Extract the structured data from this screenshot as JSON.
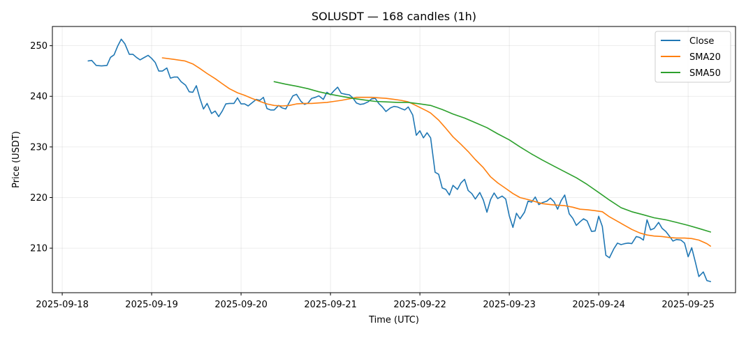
{
  "chart_data": {
    "type": "line",
    "title": "SOLUSDT — 168 candles (1h)",
    "xlabel": "Time (UTC)",
    "ylabel": "Price (USDT)",
    "x_ticks": [
      "2025-09-18",
      "2025-09-19",
      "2025-09-20",
      "2025-09-21",
      "2025-09-22",
      "2025-09-23",
      "2025-09-24",
      "2025-09-25"
    ],
    "x_range_days": [
      -0.11,
      7.53
    ],
    "y_ticks": [
      210,
      220,
      230,
      240,
      250
    ],
    "ylim": [
      201.2,
      253.8
    ],
    "grid": true,
    "legend_position": "top-right",
    "series": [
      {
        "name": "Close",
        "color": "#1f77b4",
        "points": [
          [
            0.29,
            247.0
          ],
          [
            0.33,
            247.1
          ],
          [
            0.38,
            246.1
          ],
          [
            0.44,
            246.0
          ],
          [
            0.5,
            246.1
          ],
          [
            0.54,
            247.7
          ],
          [
            0.58,
            248.2
          ],
          [
            0.62,
            249.9
          ],
          [
            0.66,
            251.3
          ],
          [
            0.7,
            250.4
          ],
          [
            0.75,
            248.3
          ],
          [
            0.79,
            248.3
          ],
          [
            0.83,
            247.7
          ],
          [
            0.87,
            247.2
          ],
          [
            0.91,
            247.6
          ],
          [
            0.96,
            248.1
          ],
          [
            1.0,
            247.5
          ],
          [
            1.04,
            246.7
          ],
          [
            1.08,
            245.0
          ],
          [
            1.12,
            245.0
          ],
          [
            1.17,
            245.6
          ],
          [
            1.21,
            243.6
          ],
          [
            1.25,
            243.8
          ],
          [
            1.29,
            243.8
          ],
          [
            1.33,
            242.9
          ],
          [
            1.38,
            242.2
          ],
          [
            1.42,
            240.9
          ],
          [
            1.46,
            240.8
          ],
          [
            1.5,
            242.1
          ],
          [
            1.54,
            239.6
          ],
          [
            1.58,
            237.5
          ],
          [
            1.62,
            238.6
          ],
          [
            1.67,
            236.6
          ],
          [
            1.71,
            237.1
          ],
          [
            1.75,
            236.0
          ],
          [
            1.79,
            237.1
          ],
          [
            1.83,
            238.5
          ],
          [
            1.87,
            238.6
          ],
          [
            1.92,
            238.6
          ],
          [
            1.96,
            239.7
          ],
          [
            2.0,
            238.5
          ],
          [
            2.04,
            238.5
          ],
          [
            2.08,
            238.1
          ],
          [
            2.12,
            238.7
          ],
          [
            2.17,
            239.4
          ],
          [
            2.21,
            239.2
          ],
          [
            2.25,
            239.8
          ],
          [
            2.29,
            237.6
          ],
          [
            2.33,
            237.3
          ],
          [
            2.37,
            237.3
          ],
          [
            2.42,
            238.2
          ],
          [
            2.46,
            237.7
          ],
          [
            2.5,
            237.5
          ],
          [
            2.54,
            238.8
          ],
          [
            2.58,
            240.1
          ],
          [
            2.62,
            240.4
          ],
          [
            2.67,
            239.0
          ],
          [
            2.71,
            238.4
          ],
          [
            2.75,
            238.7
          ],
          [
            2.79,
            239.6
          ],
          [
            2.83,
            239.8
          ],
          [
            2.87,
            240.1
          ],
          [
            2.92,
            239.4
          ],
          [
            2.96,
            240.8
          ],
          [
            3.0,
            240.3
          ],
          [
            3.04,
            241.1
          ],
          [
            3.08,
            241.8
          ],
          [
            3.12,
            240.6
          ],
          [
            3.17,
            240.4
          ],
          [
            3.21,
            240.3
          ],
          [
            3.25,
            239.7
          ],
          [
            3.29,
            238.7
          ],
          [
            3.33,
            238.4
          ],
          [
            3.37,
            238.5
          ],
          [
            3.42,
            238.9
          ],
          [
            3.46,
            239.5
          ],
          [
            3.5,
            239.6
          ],
          [
            3.54,
            238.6
          ],
          [
            3.58,
            237.9
          ],
          [
            3.62,
            237.0
          ],
          [
            3.67,
            237.7
          ],
          [
            3.71,
            238.0
          ],
          [
            3.75,
            237.9
          ],
          [
            3.79,
            237.6
          ],
          [
            3.83,
            237.3
          ],
          [
            3.87,
            237.9
          ],
          [
            3.92,
            236.3
          ],
          [
            3.96,
            232.3
          ],
          [
            4.0,
            233.2
          ],
          [
            4.04,
            231.8
          ],
          [
            4.08,
            232.8
          ],
          [
            4.12,
            231.8
          ],
          [
            4.17,
            225.0
          ],
          [
            4.21,
            224.6
          ],
          [
            4.25,
            221.9
          ],
          [
            4.29,
            221.6
          ],
          [
            4.33,
            220.5
          ],
          [
            4.37,
            222.4
          ],
          [
            4.42,
            221.6
          ],
          [
            4.46,
            222.9
          ],
          [
            4.5,
            223.6
          ],
          [
            4.54,
            221.4
          ],
          [
            4.58,
            220.8
          ],
          [
            4.62,
            219.7
          ],
          [
            4.67,
            221.0
          ],
          [
            4.71,
            219.5
          ],
          [
            4.75,
            217.1
          ],
          [
            4.79,
            219.6
          ],
          [
            4.83,
            220.9
          ],
          [
            4.87,
            219.8
          ],
          [
            4.92,
            220.3
          ],
          [
            4.96,
            219.7
          ],
          [
            5.0,
            216.4
          ],
          [
            5.04,
            214.1
          ],
          [
            5.08,
            216.9
          ],
          [
            5.12,
            215.8
          ],
          [
            5.17,
            217.1
          ],
          [
            5.21,
            219.3
          ],
          [
            5.25,
            219.1
          ],
          [
            5.29,
            220.1
          ],
          [
            5.33,
            218.6
          ],
          [
            5.37,
            219.0
          ],
          [
            5.42,
            219.3
          ],
          [
            5.46,
            219.9
          ],
          [
            5.5,
            219.2
          ],
          [
            5.54,
            217.7
          ],
          [
            5.58,
            219.4
          ],
          [
            5.62,
            220.5
          ],
          [
            5.67,
            216.8
          ],
          [
            5.71,
            215.9
          ],
          [
            5.75,
            214.5
          ],
          [
            5.79,
            215.2
          ],
          [
            5.83,
            215.8
          ],
          [
            5.87,
            215.4
          ],
          [
            5.92,
            213.3
          ],
          [
            5.96,
            213.4
          ],
          [
            6.0,
            216.3
          ],
          [
            6.04,
            214.3
          ],
          [
            6.08,
            208.6
          ],
          [
            6.12,
            208.1
          ],
          [
            6.17,
            209.9
          ],
          [
            6.21,
            211.0
          ],
          [
            6.25,
            210.7
          ],
          [
            6.29,
            210.9
          ],
          [
            6.33,
            211.0
          ],
          [
            6.37,
            210.9
          ],
          [
            6.42,
            212.3
          ],
          [
            6.46,
            212.1
          ],
          [
            6.5,
            211.6
          ],
          [
            6.54,
            215.6
          ],
          [
            6.58,
            213.6
          ],
          [
            6.62,
            213.9
          ],
          [
            6.67,
            215.1
          ],
          [
            6.71,
            213.9
          ],
          [
            6.75,
            213.3
          ],
          [
            6.79,
            212.4
          ],
          [
            6.83,
            211.4
          ],
          [
            6.87,
            211.7
          ],
          [
            6.92,
            211.6
          ],
          [
            6.96,
            211.0
          ],
          [
            7.0,
            208.3
          ],
          [
            7.04,
            210.1
          ],
          [
            7.08,
            207.3
          ],
          [
            7.12,
            204.4
          ],
          [
            7.17,
            205.3
          ],
          [
            7.21,
            203.6
          ],
          [
            7.25,
            203.4
          ]
        ]
      },
      {
        "name": "SMA20",
        "color": "#ff7f0e",
        "points": [
          [
            1.12,
            247.6
          ],
          [
            1.25,
            247.3
          ],
          [
            1.37,
            247.0
          ],
          [
            1.46,
            246.4
          ],
          [
            1.54,
            245.5
          ],
          [
            1.62,
            244.5
          ],
          [
            1.71,
            243.5
          ],
          [
            1.79,
            242.5
          ],
          [
            1.87,
            241.5
          ],
          [
            1.96,
            240.7
          ],
          [
            2.04,
            240.2
          ],
          [
            2.12,
            239.6
          ],
          [
            2.21,
            239.0
          ],
          [
            2.29,
            238.5
          ],
          [
            2.37,
            238.2
          ],
          [
            2.46,
            238.1
          ],
          [
            2.54,
            238.2
          ],
          [
            2.62,
            238.5
          ],
          [
            2.71,
            238.6
          ],
          [
            2.79,
            238.6
          ],
          [
            2.87,
            238.7
          ],
          [
            2.96,
            238.8
          ],
          [
            3.04,
            239.0
          ],
          [
            3.12,
            239.2
          ],
          [
            3.21,
            239.5
          ],
          [
            3.29,
            239.8
          ],
          [
            3.37,
            239.8
          ],
          [
            3.46,
            239.8
          ],
          [
            3.54,
            239.7
          ],
          [
            3.62,
            239.6
          ],
          [
            3.71,
            239.4
          ],
          [
            3.79,
            239.2
          ],
          [
            3.87,
            238.9
          ],
          [
            3.92,
            238.5
          ],
          [
            4.0,
            237.8
          ],
          [
            4.08,
            237.1
          ],
          [
            4.12,
            236.7
          ],
          [
            4.21,
            235.3
          ],
          [
            4.29,
            233.7
          ],
          [
            4.37,
            232.0
          ],
          [
            4.46,
            230.5
          ],
          [
            4.54,
            229.1
          ],
          [
            4.62,
            227.5
          ],
          [
            4.71,
            225.9
          ],
          [
            4.79,
            224.1
          ],
          [
            4.87,
            222.9
          ],
          [
            4.96,
            221.8
          ],
          [
            5.04,
            220.8
          ],
          [
            5.12,
            220.0
          ],
          [
            5.21,
            219.6
          ],
          [
            5.29,
            219.2
          ],
          [
            5.37,
            218.8
          ],
          [
            5.46,
            218.6
          ],
          [
            5.54,
            218.5
          ],
          [
            5.62,
            218.4
          ],
          [
            5.71,
            218.1
          ],
          [
            5.79,
            217.7
          ],
          [
            5.87,
            217.6
          ],
          [
            5.96,
            217.4
          ],
          [
            6.04,
            217.2
          ],
          [
            6.12,
            216.2
          ],
          [
            6.21,
            215.3
          ],
          [
            6.29,
            214.5
          ],
          [
            6.37,
            213.7
          ],
          [
            6.46,
            213.0
          ],
          [
            6.54,
            212.6
          ],
          [
            6.62,
            212.4
          ],
          [
            6.71,
            212.3
          ],
          [
            6.79,
            212.1
          ],
          [
            6.87,
            212.0
          ],
          [
            6.96,
            212.0
          ],
          [
            7.04,
            211.9
          ],
          [
            7.12,
            211.6
          ],
          [
            7.21,
            210.9
          ],
          [
            7.25,
            210.4
          ]
        ]
      },
      {
        "name": "SMA50",
        "color": "#2ca02c",
        "points": [
          [
            2.37,
            242.9
          ],
          [
            2.5,
            242.4
          ],
          [
            2.62,
            242.0
          ],
          [
            2.75,
            241.5
          ],
          [
            2.87,
            240.9
          ],
          [
            3.0,
            240.4
          ],
          [
            3.12,
            240.0
          ],
          [
            3.25,
            239.6
          ],
          [
            3.37,
            239.3
          ],
          [
            3.5,
            239.0
          ],
          [
            3.62,
            238.9
          ],
          [
            3.75,
            238.8
          ],
          [
            3.87,
            238.8
          ],
          [
            4.0,
            238.5
          ],
          [
            4.12,
            238.2
          ],
          [
            4.25,
            237.4
          ],
          [
            4.37,
            236.5
          ],
          [
            4.5,
            235.7
          ],
          [
            4.62,
            234.8
          ],
          [
            4.75,
            233.8
          ],
          [
            4.87,
            232.6
          ],
          [
            5.0,
            231.4
          ],
          [
            5.12,
            230.0
          ],
          [
            5.25,
            228.6
          ],
          [
            5.37,
            227.4
          ],
          [
            5.5,
            226.2
          ],
          [
            5.62,
            225.1
          ],
          [
            5.75,
            223.9
          ],
          [
            5.87,
            222.6
          ],
          [
            6.0,
            221.0
          ],
          [
            6.12,
            219.5
          ],
          [
            6.25,
            218.0
          ],
          [
            6.37,
            217.2
          ],
          [
            6.5,
            216.6
          ],
          [
            6.62,
            216.0
          ],
          [
            6.75,
            215.6
          ],
          [
            6.87,
            215.1
          ],
          [
            7.0,
            214.5
          ],
          [
            7.12,
            213.9
          ],
          [
            7.25,
            213.2
          ]
        ]
      }
    ]
  }
}
